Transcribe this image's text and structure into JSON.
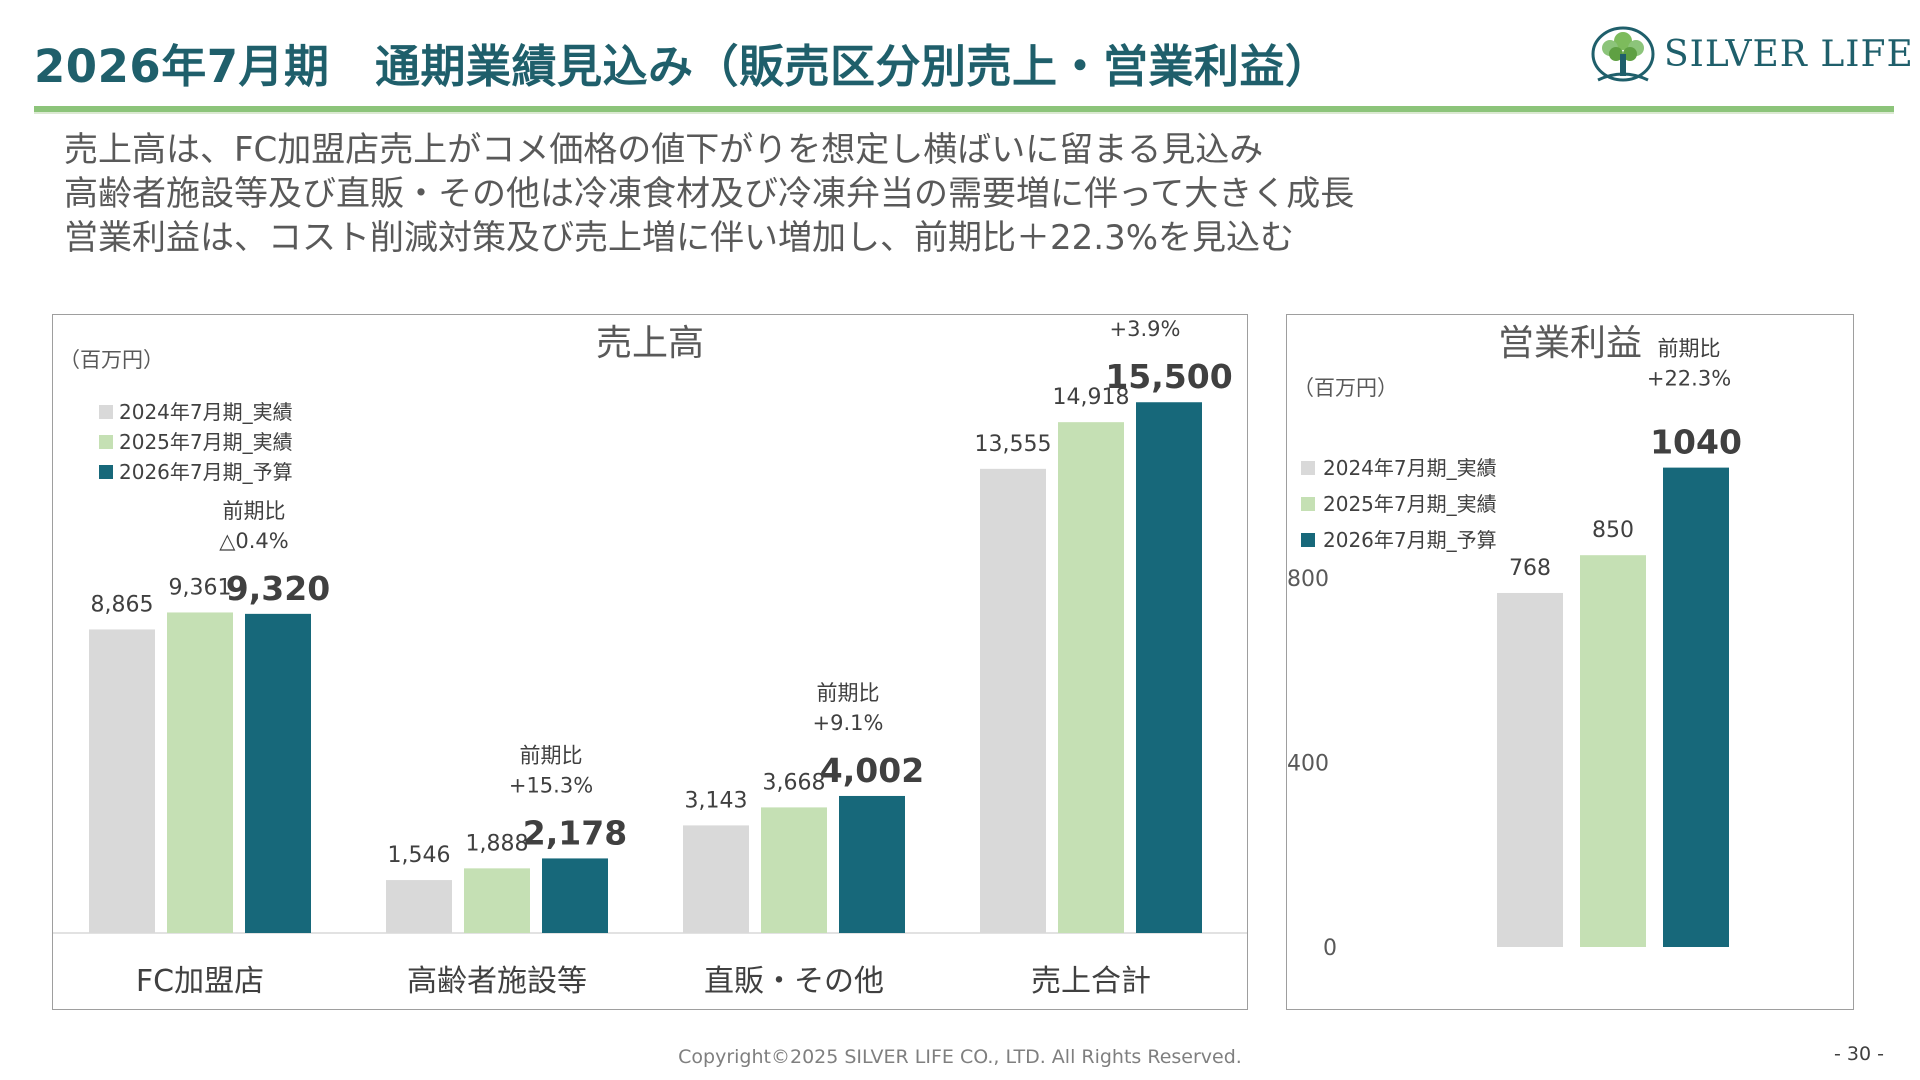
{
  "header": {
    "title": "2026年7月期　通期業績見込み（販売区分別売上・営業利益）",
    "logo_text": "SILVER LIFE",
    "logo_icon": "tree-logo-icon"
  },
  "summary": [
    "売上高は、FC加盟店売上がコメ価格の値下がりを想定し横ばいに留まる見込み",
    "高齢者施設等及び直販・その他は冷凍食材及び冷凍弁当の需要増に伴って大きく成長",
    "営業利益は、コスト削減対策及び売上増に伴い増加し、前期比＋22.3%を見込む"
  ],
  "colors": {
    "fy2024": "#d9d9d9",
    "fy2025": "#c5e0b4",
    "fy2026": "#17687a",
    "title": "#1f5f6b",
    "accent_line": "#8cc47a"
  },
  "chart_data": [
    {
      "type": "bar",
      "title": "売上高",
      "unit": "（百万円）",
      "categories": [
        "FC加盟店",
        "高齢者施設等",
        "直販・その他",
        "売上合計"
      ],
      "series": [
        {
          "name": "2024年7月期_実績",
          "values": [
            8865,
            1546,
            3143,
            13555
          ],
          "labels": [
            "8,865",
            "1,546",
            "3,143",
            "13,555"
          ]
        },
        {
          "name": "2025年7月期_実績",
          "values": [
            9361,
            1888,
            3668,
            14918
          ],
          "labels": [
            "9,361",
            "1,888",
            "3,668",
            "14,918"
          ]
        },
        {
          "name": "2026年7月期_予算",
          "values": [
            9320,
            2178,
            4002,
            15500
          ],
          "labels": [
            "9,320",
            "2,178",
            "4,002",
            "15,500"
          ]
        }
      ],
      "yoy_label": "前期比",
      "yoy": [
        "△0.4%",
        "+15.3%",
        "+9.1%",
        "+3.9%"
      ],
      "ylim": [
        0,
        16500
      ],
      "legend": "top-left",
      "grid": false
    },
    {
      "type": "bar",
      "title": "営業利益",
      "unit": "（百万円）",
      "categories": [
        ""
      ],
      "series": [
        {
          "name": "2024年7月期_実績",
          "values": [
            768
          ],
          "labels": [
            "768"
          ]
        },
        {
          "name": "2025年7月期_実績",
          "values": [
            850
          ],
          "labels": [
            "850"
          ]
        },
        {
          "name": "2026年7月期_予算",
          "values": [
            1040
          ],
          "labels": [
            "1040"
          ]
        }
      ],
      "yoy_label": "前期比",
      "yoy": [
        "+22.3%"
      ],
      "yticks": [
        0,
        400,
        800
      ],
      "ylim": [
        0,
        1050
      ],
      "legend": "left",
      "grid": false
    }
  ],
  "footer": {
    "copyright": "Copyright©2025 SILVER LIFE CO., LTD.  All Rights Reserved.",
    "page": "- 30 -"
  }
}
